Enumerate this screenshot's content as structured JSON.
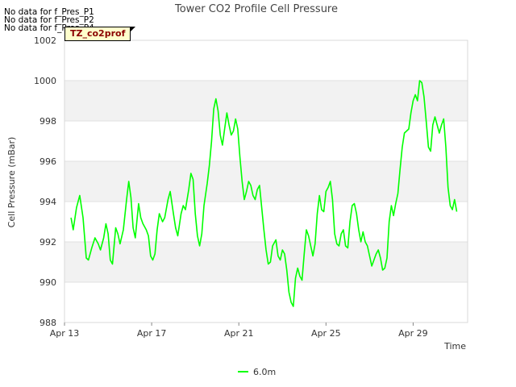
{
  "header": {
    "no_data": [
      "No data for f_Pres_P1",
      "No data for f_Pres_P2",
      "No data for f_Pres_P4"
    ],
    "site_tag": "TZ_co2prof"
  },
  "chart_data": {
    "type": "line",
    "title": "Tower CO2 Profile Cell Pressure",
    "xlabel": "Time",
    "ylabel": "Cell Pressure (mBar)",
    "xlim": [
      0,
      18.5
    ],
    "ylim": [
      988,
      1002
    ],
    "yticks": [
      988,
      990,
      992,
      994,
      996,
      998,
      1000,
      1002
    ],
    "xticks": [
      {
        "day": 0,
        "label": "Apr 13"
      },
      {
        "day": 4,
        "label": "Apr 17"
      },
      {
        "day": 8,
        "label": "Apr 21"
      },
      {
        "day": 12,
        "label": "Apr 25"
      },
      {
        "day": 16,
        "label": "Apr 29"
      }
    ],
    "grid": true,
    "legend_position": "bottom",
    "series": [
      {
        "name": "6.0m",
        "color": "#00ff00",
        "points": [
          [
            0.3,
            993.2
          ],
          [
            0.4,
            992.6
          ],
          [
            0.55,
            993.7
          ],
          [
            0.7,
            994.3
          ],
          [
            0.85,
            993.2
          ],
          [
            1.0,
            991.2
          ],
          [
            1.1,
            991.1
          ],
          [
            1.25,
            991.7
          ],
          [
            1.4,
            992.2
          ],
          [
            1.55,
            991.9
          ],
          [
            1.65,
            991.6
          ],
          [
            1.8,
            992.2
          ],
          [
            1.9,
            992.9
          ],
          [
            2.0,
            992.4
          ],
          [
            2.1,
            991.1
          ],
          [
            2.2,
            990.9
          ],
          [
            2.35,
            992.7
          ],
          [
            2.45,
            992.4
          ],
          [
            2.55,
            991.9
          ],
          [
            2.7,
            992.6
          ],
          [
            2.85,
            994.1
          ],
          [
            2.95,
            995.0
          ],
          [
            3.05,
            994.2
          ],
          [
            3.15,
            992.7
          ],
          [
            3.25,
            992.2
          ],
          [
            3.4,
            993.9
          ],
          [
            3.5,
            993.2
          ],
          [
            3.6,
            992.9
          ],
          [
            3.75,
            992.6
          ],
          [
            3.85,
            992.3
          ],
          [
            3.95,
            991.3
          ],
          [
            4.05,
            991.1
          ],
          [
            4.15,
            991.4
          ],
          [
            4.25,
            992.6
          ],
          [
            4.35,
            993.4
          ],
          [
            4.5,
            993.0
          ],
          [
            4.6,
            993.2
          ],
          [
            4.75,
            994.1
          ],
          [
            4.85,
            994.5
          ],
          [
            5.0,
            993.4
          ],
          [
            5.1,
            992.7
          ],
          [
            5.2,
            992.3
          ],
          [
            5.35,
            993.4
          ],
          [
            5.45,
            993.8
          ],
          [
            5.55,
            993.6
          ],
          [
            5.7,
            994.6
          ],
          [
            5.8,
            995.4
          ],
          [
            5.9,
            995.1
          ],
          [
            6.0,
            993.4
          ],
          [
            6.1,
            992.3
          ],
          [
            6.2,
            991.8
          ],
          [
            6.3,
            992.4
          ],
          [
            6.4,
            993.8
          ],
          [
            6.55,
            994.9
          ],
          [
            6.65,
            995.8
          ],
          [
            6.75,
            997.0
          ],
          [
            6.85,
            998.6
          ],
          [
            6.95,
            999.1
          ],
          [
            7.05,
            998.5
          ],
          [
            7.15,
            997.3
          ],
          [
            7.25,
            996.8
          ],
          [
            7.35,
            997.6
          ],
          [
            7.45,
            998.4
          ],
          [
            7.55,
            997.8
          ],
          [
            7.65,
            997.3
          ],
          [
            7.75,
            997.5
          ],
          [
            7.85,
            998.1
          ],
          [
            7.95,
            997.6
          ],
          [
            8.05,
            996.2
          ],
          [
            8.15,
            995.0
          ],
          [
            8.25,
            994.1
          ],
          [
            8.35,
            994.5
          ],
          [
            8.45,
            995.0
          ],
          [
            8.55,
            994.8
          ],
          [
            8.65,
            994.3
          ],
          [
            8.75,
            994.1
          ],
          [
            8.85,
            994.6
          ],
          [
            8.95,
            994.8
          ],
          [
            9.05,
            993.7
          ],
          [
            9.15,
            992.6
          ],
          [
            9.25,
            991.6
          ],
          [
            9.35,
            990.9
          ],
          [
            9.45,
            991.0
          ],
          [
            9.55,
            991.8
          ],
          [
            9.7,
            992.1
          ],
          [
            9.8,
            991.3
          ],
          [
            9.9,
            991.1
          ],
          [
            10.0,
            991.6
          ],
          [
            10.1,
            991.4
          ],
          [
            10.2,
            990.6
          ],
          [
            10.3,
            989.5
          ],
          [
            10.4,
            989.0
          ],
          [
            10.5,
            988.8
          ],
          [
            10.6,
            990.2
          ],
          [
            10.7,
            990.7
          ],
          [
            10.8,
            990.3
          ],
          [
            10.9,
            990.1
          ],
          [
            11.0,
            991.4
          ],
          [
            11.1,
            992.6
          ],
          [
            11.2,
            992.3
          ],
          [
            11.3,
            991.8
          ],
          [
            11.4,
            991.3
          ],
          [
            11.5,
            991.9
          ],
          [
            11.6,
            993.4
          ],
          [
            11.7,
            994.3
          ],
          [
            11.8,
            993.6
          ],
          [
            11.9,
            993.5
          ],
          [
            12.0,
            994.5
          ],
          [
            12.1,
            994.7
          ],
          [
            12.2,
            995.0
          ],
          [
            12.3,
            994.1
          ],
          [
            12.4,
            992.4
          ],
          [
            12.5,
            991.9
          ],
          [
            12.6,
            991.8
          ],
          [
            12.7,
            992.4
          ],
          [
            12.8,
            992.6
          ],
          [
            12.9,
            991.8
          ],
          [
            13.0,
            991.7
          ],
          [
            13.1,
            993.0
          ],
          [
            13.2,
            993.8
          ],
          [
            13.3,
            993.9
          ],
          [
            13.4,
            993.4
          ],
          [
            13.5,
            992.6
          ],
          [
            13.6,
            992.0
          ],
          [
            13.7,
            992.5
          ],
          [
            13.8,
            992.0
          ],
          [
            13.9,
            991.8
          ],
          [
            14.0,
            991.3
          ],
          [
            14.1,
            990.8
          ],
          [
            14.2,
            991.1
          ],
          [
            14.3,
            991.4
          ],
          [
            14.4,
            991.6
          ],
          [
            14.5,
            991.2
          ],
          [
            14.6,
            990.6
          ],
          [
            14.7,
            990.7
          ],
          [
            14.8,
            991.2
          ],
          [
            14.9,
            993.0
          ],
          [
            15.0,
            993.8
          ],
          [
            15.1,
            993.3
          ],
          [
            15.2,
            993.9
          ],
          [
            15.3,
            994.4
          ],
          [
            15.4,
            995.6
          ],
          [
            15.5,
            996.7
          ],
          [
            15.6,
            997.4
          ],
          [
            15.7,
            997.5
          ],
          [
            15.8,
            997.6
          ],
          [
            15.9,
            998.4
          ],
          [
            16.0,
            999.0
          ],
          [
            16.1,
            999.3
          ],
          [
            16.2,
            999.0
          ],
          [
            16.3,
            1000.0
          ],
          [
            16.4,
            999.9
          ],
          [
            16.5,
            999.2
          ],
          [
            16.6,
            998.0
          ],
          [
            16.7,
            996.7
          ],
          [
            16.8,
            996.5
          ],
          [
            16.9,
            997.8
          ],
          [
            17.0,
            998.2
          ],
          [
            17.1,
            997.8
          ],
          [
            17.2,
            997.4
          ],
          [
            17.3,
            997.8
          ],
          [
            17.4,
            998.1
          ],
          [
            17.5,
            996.7
          ],
          [
            17.6,
            994.7
          ],
          [
            17.7,
            993.8
          ],
          [
            17.8,
            993.6
          ],
          [
            17.9,
            994.1
          ],
          [
            18.0,
            993.5
          ]
        ]
      }
    ]
  }
}
